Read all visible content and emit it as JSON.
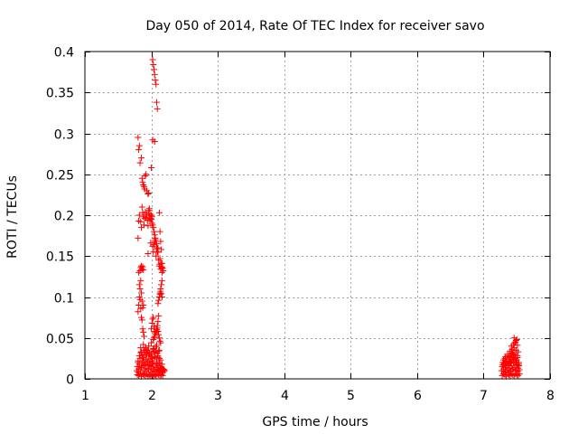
{
  "chart_data": {
    "type": "scatter",
    "title": "Day 050 of 2014, Rate Of TEC Index for receiver savo",
    "xlabel": "GPS time / hours",
    "ylabel": "ROTI / TECUs",
    "xlim": [
      1,
      8
    ],
    "ylim": [
      0,
      0.4
    ],
    "xticks": [
      1,
      2,
      3,
      4,
      5,
      6,
      7,
      8
    ],
    "xtick_labels": [
      "1",
      "2",
      "3",
      "4",
      "5",
      "6",
      "7",
      "8"
    ],
    "yticks": [
      0,
      0.05,
      0.1,
      0.15,
      0.2,
      0.25,
      0.3,
      0.35,
      0.4
    ],
    "ytick_labels": [
      "0",
      "0.05",
      "0.1",
      "0.15",
      "0.2",
      "0.25",
      "0.3",
      "0.35",
      "0.4"
    ],
    "grid": true,
    "marker": "+",
    "color": "#ff0000",
    "series": [
      {
        "name": "ROTI",
        "x": [
          1.78,
          1.79,
          1.8,
          1.8,
          1.81,
          1.82,
          1.83,
          1.84,
          1.85,
          1.86,
          1.87,
          1.88,
          1.89,
          1.9,
          1.91,
          1.92,
          1.93,
          1.94,
          1.95,
          1.96,
          1.97,
          1.98,
          1.99,
          2.0,
          2.01,
          2.02,
          2.03,
          2.04,
          2.05,
          2.06,
          2.07,
          2.08,
          2.09,
          2.1,
          2.11,
          2.12,
          2.13,
          2.14,
          2.15,
          2.16,
          2.17,
          2.18,
          2.19,
          2.2,
          1.79,
          1.81,
          1.83,
          1.85,
          1.87,
          1.89,
          1.91,
          1.93,
          1.95,
          1.97,
          1.99,
          2.01,
          2.03,
          2.05,
          2.07,
          2.09,
          2.11,
          2.13,
          2.15,
          2.17,
          1.8,
          1.82,
          1.84,
          1.86,
          1.88,
          1.9,
          1.92,
          1.94,
          1.96,
          1.98,
          2.0,
          2.02,
          2.04,
          2.06,
          2.08,
          2.1,
          2.12,
          2.14,
          2.16,
          1.82,
          1.86,
          1.9,
          1.94,
          1.98,
          2.02,
          2.06,
          2.1,
          2.14,
          2.18,
          1.84,
          1.88,
          1.92,
          1.96,
          2.0,
          2.04,
          2.08,
          2.12,
          1.85,
          1.91,
          1.97,
          2.03,
          2.07,
          2.11,
          1.86,
          1.92,
          1.98,
          2.04,
          2.1,
          1.87,
          1.93,
          2.0,
          2.06,
          2.12,
          1.89,
          1.95,
          2.03,
          2.09,
          1.8,
          1.81,
          1.82,
          1.83,
          1.84,
          1.85,
          1.86,
          1.87,
          1.88,
          1.89,
          2.0,
          2.01,
          2.02,
          2.03,
          2.04,
          2.05,
          2.08,
          2.09,
          2.1,
          2.11,
          2.12,
          2.13,
          2.14,
          2.15,
          2.16,
          1.83,
          1.84,
          1.85,
          1.86,
          1.87,
          1.88,
          1.8,
          1.81,
          1.82,
          1.84,
          1.85,
          1.86,
          1.87,
          1.88,
          1.89,
          1.9,
          1.91,
          1.92,
          1.93,
          1.94,
          1.95,
          1.96,
          1.97,
          1.98,
          1.99,
          2.0,
          2.01,
          2.02,
          2.03,
          2.04,
          2.05,
          2.06,
          2.07,
          2.08,
          2.09,
          2.1,
          2.11,
          2.12,
          2.13,
          2.14,
          2.15,
          2.16,
          2.03,
          2.04,
          2.05,
          2.06,
          2.07,
          2.08,
          2.09,
          2.1,
          2.11,
          2.12,
          2.13,
          2.14,
          2.1,
          2.11,
          2.12,
          2.13,
          2.14,
          2.15,
          2.16,
          2.12,
          2.13,
          2.14,
          2.15,
          2.16,
          2.17,
          2.18,
          1.95,
          2.0,
          2.1,
          2.15,
          2.13,
          2.16,
          1.8,
          1.82,
          1.81,
          1.83,
          1.85,
          1.86,
          1.87,
          1.88,
          1.89,
          1.9,
          1.91,
          1.92,
          1.93,
          1.95,
          1.96,
          1.97,
          1.98,
          1.99,
          2.0,
          2.01,
          2.02,
          2.03,
          2.04,
          2.05,
          2.06,
          2.07,
          2.08,
          2.09,
          2.1,
          2.02,
          2.03,
          2.04,
          2.05,
          2.06,
          2.07,
          2.08,
          2.09,
          2.02,
          2.05,
          2.0,
          1.81,
          1.83,
          1.82,
          1.84,
          1.85,
          1.86,
          1.88,
          1.87,
          7.27,
          7.28,
          7.29,
          7.3,
          7.31,
          7.32,
          7.33,
          7.34,
          7.35,
          7.36,
          7.37,
          7.38,
          7.39,
          7.4,
          7.41,
          7.42,
          7.43,
          7.44,
          7.45,
          7.46,
          7.47,
          7.48,
          7.49,
          7.5,
          7.51,
          7.52,
          7.53,
          7.54,
          7.28,
          7.3,
          7.32,
          7.34,
          7.36,
          7.38,
          7.4,
          7.42,
          7.44,
          7.46,
          7.48,
          7.5,
          7.52,
          7.54,
          7.3,
          7.33,
          7.36,
          7.39,
          7.42,
          7.45,
          7.48,
          7.51,
          7.35,
          7.38,
          7.41,
          7.44,
          7.47,
          7.5,
          7.53,
          7.4,
          7.43,
          7.46,
          7.49,
          7.52,
          7.42,
          7.45,
          7.48,
          7.5,
          7.46,
          7.49,
          7.47,
          7.51,
          7.29,
          7.31,
          7.33,
          7.35,
          7.37,
          7.39,
          7.41,
          7.43,
          7.45,
          7.47,
          7.49,
          7.51,
          7.53,
          7.32,
          7.36,
          7.4,
          7.44,
          7.48,
          7.52
        ],
        "y": [
          0.01,
          0.015,
          0.02,
          0.008,
          0.012,
          0.018,
          0.025,
          0.01,
          0.014,
          0.02,
          0.006,
          0.016,
          0.022,
          0.012,
          0.009,
          0.018,
          0.03,
          0.013,
          0.02,
          0.011,
          0.017,
          0.024,
          0.008,
          0.015,
          0.021,
          0.012,
          0.019,
          0.01,
          0.026,
          0.014,
          0.009,
          0.018,
          0.012,
          0.016,
          0.011,
          0.008,
          0.014,
          0.01,
          0.013,
          0.009,
          0.012,
          0.008,
          0.011,
          0.01,
          0.005,
          0.004,
          0.006,
          0.003,
          0.007,
          0.005,
          0.004,
          0.006,
          0.003,
          0.005,
          0.004,
          0.006,
          0.003,
          0.005,
          0.004,
          0.006,
          0.005,
          0.004,
          0.005,
          0.004,
          0.022,
          0.028,
          0.032,
          0.02,
          0.026,
          0.03,
          0.024,
          0.035,
          0.028,
          0.022,
          0.03,
          0.025,
          0.033,
          0.027,
          0.021,
          0.026,
          0.019,
          0.023,
          0.018,
          0.015,
          0.02,
          0.017,
          0.022,
          0.016,
          0.019,
          0.014,
          0.018,
          0.013,
          0.012,
          0.038,
          0.042,
          0.036,
          0.04,
          0.044,
          0.037,
          0.041,
          0.035,
          0.033,
          0.038,
          0.031,
          0.036,
          0.039,
          0.034,
          0.029,
          0.032,
          0.03,
          0.034,
          0.028,
          0.026,
          0.03,
          0.027,
          0.032,
          0.025,
          0.035,
          0.033,
          0.037,
          0.031,
          0.082,
          0.09,
          0.1,
          0.097,
          0.086,
          0.075,
          0.072,
          0.061,
          0.057,
          0.052,
          0.061,
          0.068,
          0.073,
          0.075,
          0.064,
          0.058,
          0.06,
          0.065,
          0.07,
          0.077,
          0.1,
          0.105,
          0.11,
          0.115,
          0.12,
          0.132,
          0.136,
          0.138,
          0.134,
          0.137,
          0.133,
          0.172,
          0.193,
          0.2,
          0.192,
          0.185,
          0.21,
          0.203,
          0.198,
          0.188,
          0.196,
          0.204,
          0.197,
          0.201,
          0.194,
          0.187,
          0.206,
          0.199,
          0.193,
          0.166,
          0.2,
          0.198,
          0.162,
          0.155,
          0.164,
          0.168,
          0.17,
          0.15,
          0.158,
          0.155,
          0.16,
          0.145,
          0.203,
          0.18,
          0.168,
          0.158,
          0.136,
          0.048,
          0.05,
          0.052,
          0.055,
          0.057,
          0.06,
          0.062,
          0.058,
          0.054,
          0.05,
          0.046,
          0.044,
          0.092,
          0.096,
          0.1,
          0.103,
          0.107,
          0.104,
          0.1,
          0.138,
          0.14,
          0.134,
          0.137,
          0.13,
          0.135,
          0.132,
          0.153,
          0.195,
          0.155,
          0.141,
          0.147,
          0.141,
          0.295,
          0.285,
          0.28,
          0.264,
          0.27,
          0.245,
          0.24,
          0.237,
          0.235,
          0.232,
          0.248,
          0.25,
          0.23,
          0.226,
          0.227,
          0.208,
          0.202,
          0.196,
          0.195,
          0.19,
          0.188,
          0.185,
          0.18,
          0.176,
          0.172,
          0.168,
          0.165,
          0.16,
          0.155,
          0.39,
          0.384,
          0.378,
          0.372,
          0.365,
          0.36,
          0.338,
          0.33,
          0.292,
          0.29,
          0.258,
          0.13,
          0.11,
          0.115,
          0.12,
          0.105,
          0.095,
          0.09,
          0.087,
          0.01,
          0.015,
          0.02,
          0.012,
          0.018,
          0.025,
          0.008,
          0.014,
          0.022,
          0.011,
          0.017,
          0.028,
          0.013,
          0.02,
          0.009,
          0.016,
          0.024,
          0.012,
          0.019,
          0.03,
          0.014,
          0.021,
          0.01,
          0.017,
          0.026,
          0.013,
          0.018,
          0.011,
          0.004,
          0.006,
          0.005,
          0.003,
          0.007,
          0.005,
          0.004,
          0.006,
          0.005,
          0.004,
          0.006,
          0.005,
          0.004,
          0.006,
          0.023,
          0.027,
          0.03,
          0.026,
          0.032,
          0.029,
          0.025,
          0.028,
          0.021,
          0.024,
          0.027,
          0.031,
          0.026,
          0.023,
          0.02,
          0.034,
          0.036,
          0.038,
          0.035,
          0.033,
          0.04,
          0.042,
          0.045,
          0.048,
          0.05,
          0.047,
          0.044,
          0.041,
          0.017,
          0.019,
          0.016,
          0.02,
          0.018,
          0.022,
          0.019,
          0.023,
          0.021,
          0.024,
          0.02,
          0.018,
          0.016,
          0.009,
          0.011,
          0.01,
          0.012,
          0.011,
          0.009
        ]
      }
    ]
  }
}
